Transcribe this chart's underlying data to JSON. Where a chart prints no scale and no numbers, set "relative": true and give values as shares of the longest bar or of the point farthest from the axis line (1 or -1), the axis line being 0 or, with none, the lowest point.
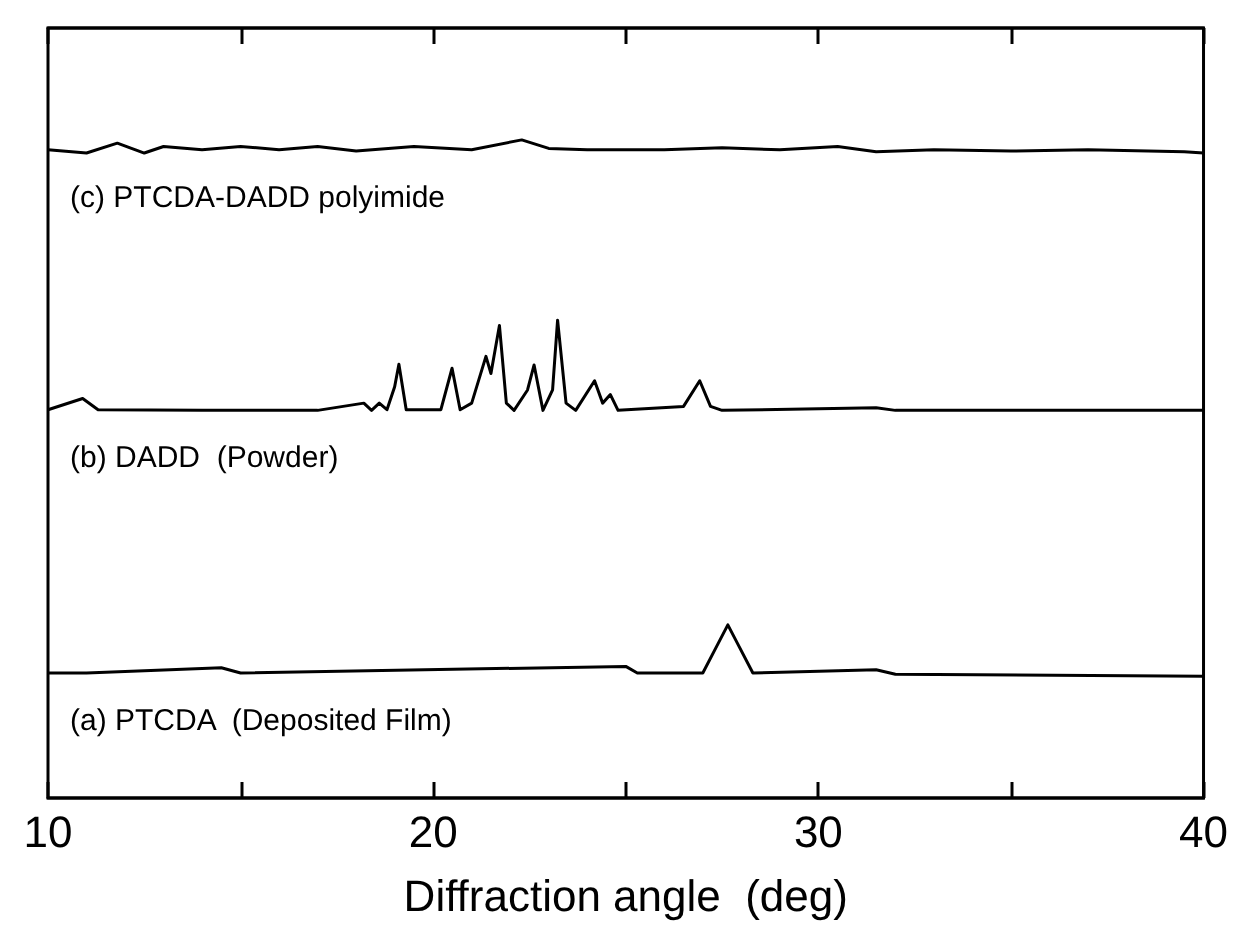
{
  "chart_data": {
    "type": "line",
    "xlabel": "Diffraction angle  (deg)",
    "relative": true,
    "xlim": [
      10,
      40
    ],
    "xticks": [
      10,
      {
        "value": 15,
        "label": null
      },
      20,
      {
        "value": 25,
        "label": null
      },
      30,
      {
        "value": 35,
        "label": null
      },
      40
    ],
    "grid": false,
    "marker": "none",
    "line_style": "solid",
    "series": [
      {
        "name": "(c) PTCDA-DADD polyimide",
        "color": "#000000",
        "x": [
          10,
          11,
          11.8,
          12.5,
          13,
          14,
          15,
          16,
          17,
          18,
          19.5,
          21,
          22.3,
          23,
          24,
          26,
          27.5,
          29,
          30.5,
          31.5,
          33,
          35,
          37,
          39.5,
          40
        ],
        "values": [
          0.985,
          0.98,
          0.995,
          0.98,
          0.99,
          0.985,
          0.99,
          0.985,
          0.99,
          0.983,
          0.99,
          0.985,
          1.0,
          0.987,
          0.985,
          0.985,
          0.988,
          0.985,
          0.99,
          0.982,
          0.985,
          0.983,
          0.985,
          0.982,
          0.98
        ]
      },
      {
        "name": "(b) DADD  (Powder)",
        "color": "#000000",
        "x": [
          10,
          10.9,
          11.3,
          14,
          17,
          18.2,
          18.4,
          18.6,
          18.8,
          19.0,
          19.11,
          19.3,
          20.2,
          20.49,
          20.7,
          21.0,
          21.37,
          21.5,
          21.72,
          21.9,
          22.1,
          22.45,
          22.62,
          22.85,
          23.1,
          23.23,
          23.45,
          23.7,
          24.19,
          24.4,
          24.6,
          24.8,
          26.5,
          26.92,
          27.2,
          27.5,
          31.5,
          32,
          40
        ],
        "values": [
          0.59,
          0.607,
          0.59,
          0.589,
          0.589,
          0.6,
          0.589,
          0.6,
          0.59,
          0.625,
          0.659,
          0.59,
          0.59,
          0.653,
          0.59,
          0.6,
          0.671,
          0.645,
          0.718,
          0.6,
          0.589,
          0.62,
          0.658,
          0.589,
          0.62,
          0.726,
          0.6,
          0.589,
          0.634,
          0.6,
          0.613,
          0.589,
          0.595,
          0.634,
          0.595,
          0.589,
          0.593,
          0.589,
          0.589
        ]
      },
      {
        "name": "(a) PTCDA  (Deposited Film)",
        "color": "#000000",
        "x": [
          10,
          11,
          14.5,
          15,
          25,
          25.3,
          27,
          27.4,
          27.65,
          27.9,
          28.3,
          31.5,
          32,
          40
        ],
        "values": [
          0.19,
          0.19,
          0.198,
          0.19,
          0.2,
          0.19,
          0.19,
          0.235,
          0.263,
          0.235,
          0.19,
          0.195,
          0.188,
          0.185
        ]
      }
    ]
  }
}
